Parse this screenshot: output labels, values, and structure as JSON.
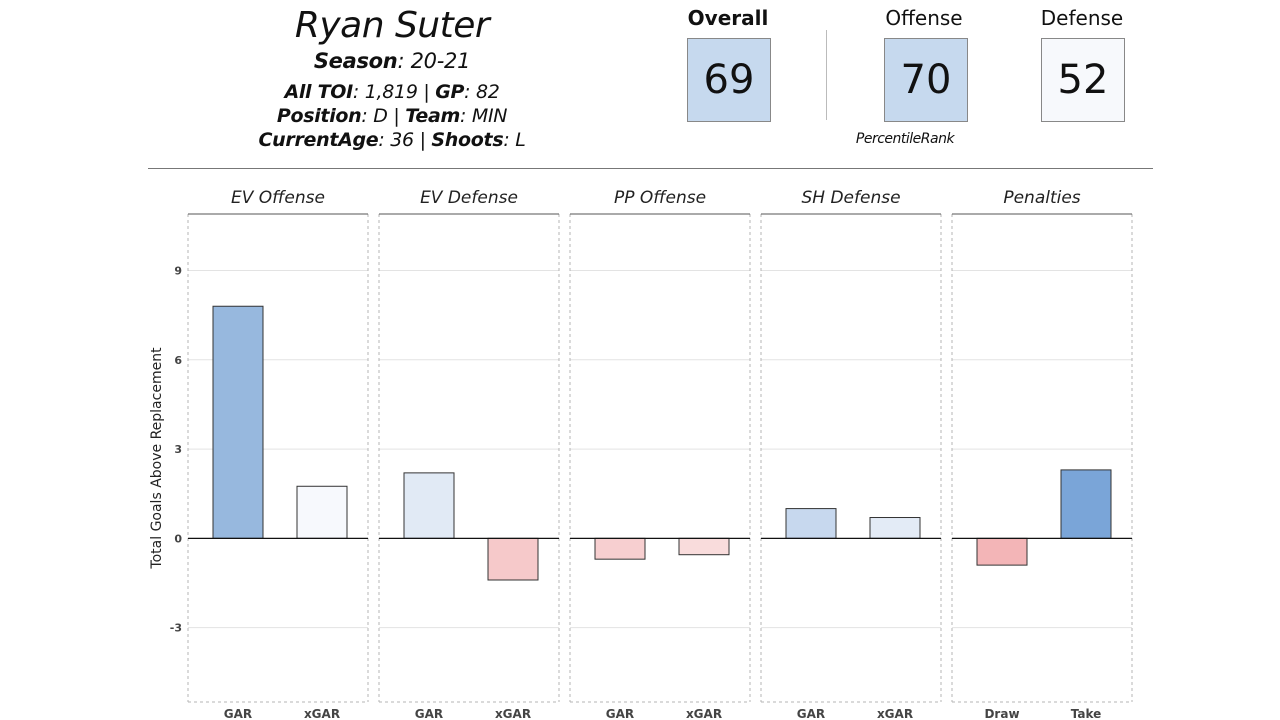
{
  "player": {
    "name": "Ryan Suter",
    "season_label": "Season",
    "season": "20-21",
    "toi_label": "All TOI",
    "toi": "1,819",
    "gp_label": "GP",
    "gp": "82",
    "position_label": "Position",
    "position": "D",
    "team_label": "Team",
    "team": "MIN",
    "age_label": "CurrentAge",
    "age": "36",
    "shoots_label": "Shoots",
    "shoots": "L"
  },
  "ratings": {
    "overall": {
      "label": "Overall",
      "value": "69",
      "color": "#c6d9ee"
    },
    "offense": {
      "label": "Offense",
      "value": "70",
      "color": "#c6d9ee"
    },
    "defense": {
      "label": "Defense",
      "value": "52",
      "color": "#f7f9fc"
    },
    "note": "PercentileRank"
  },
  "chart_data": {
    "type": "bar",
    "ylabel": "Total Goals Above Replacement",
    "ylim": [
      -5.5,
      10.9
    ],
    "yticks": [
      -3,
      0,
      3,
      6,
      9
    ],
    "grid": true,
    "panels": [
      {
        "title": "EV Offense",
        "categories": [
          "GAR",
          "xGAR"
        ],
        "values": [
          7.8,
          1.75
        ],
        "colors": [
          "#97b8de",
          "#f7f9fd"
        ]
      },
      {
        "title": "EV Defense",
        "categories": [
          "GAR",
          "xGAR"
        ],
        "values": [
          2.2,
          -1.4
        ],
        "colors": [
          "#e1eaf5",
          "#f6c9ca"
        ]
      },
      {
        "title": "PP Offense",
        "categories": [
          "GAR",
          "xGAR"
        ],
        "values": [
          -0.7,
          -0.55
        ],
        "colors": [
          "#f7cfd0",
          "#f9dcdc"
        ]
      },
      {
        "title": "SH Defense",
        "categories": [
          "GAR",
          "xGAR"
        ],
        "values": [
          1.0,
          0.7
        ],
        "colors": [
          "#c7d8ee",
          "#e3ebf6"
        ]
      },
      {
        "title": "Penalties",
        "categories": [
          "Draw",
          "Take"
        ],
        "values": [
          -0.9,
          2.3
        ],
        "colors": [
          "#f3b5b7",
          "#7aa5d8"
        ]
      }
    ]
  }
}
